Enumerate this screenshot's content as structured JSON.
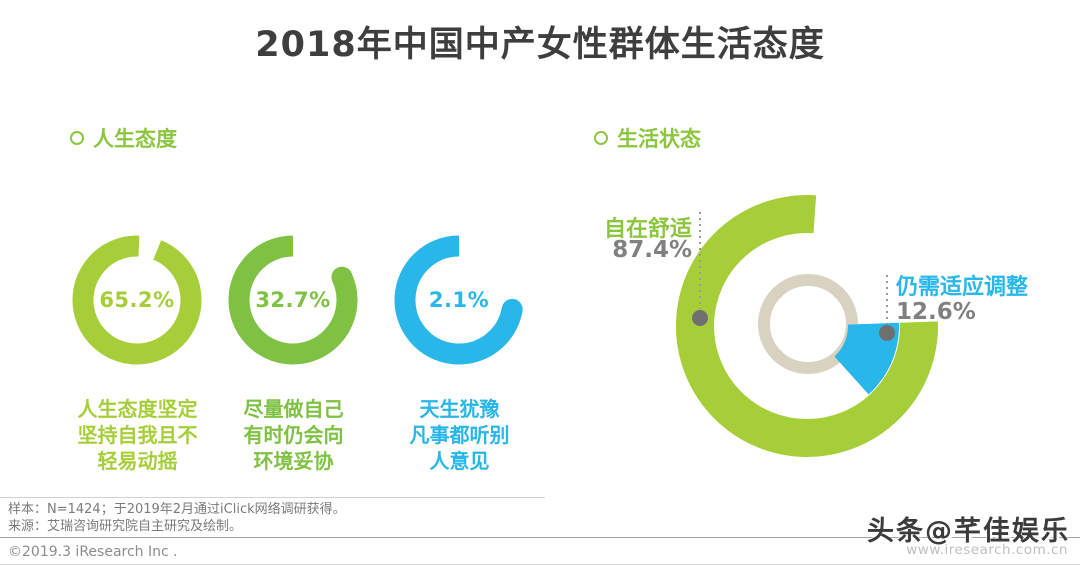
{
  "title": "2018年中国中产女性群体生活态度",
  "sections": {
    "left": {
      "header": "人生态度"
    },
    "right": {
      "header": "生活状态"
    }
  },
  "colors": {
    "title_dark": "#3e3e3e",
    "header_green": "#8cc63f",
    "value_gray": "#808080",
    "inner_ring_beige": "#d8d2c1",
    "dot_gray": "#6f6f6f",
    "dotted_line_gray": "#9a9a9a"
  },
  "chart_data": [
    {
      "type": "pie",
      "variant": "three-donuts",
      "title": "人生态度",
      "legend_position": "below-each-donut",
      "items": [
        {
          "label": "人生态度坚定坚持自我且不轻易动摇",
          "label_lines": [
            "人生态度坚定",
            "坚持自我且不",
            "轻易动摇"
          ],
          "value_pct": 65.2,
          "value_label": "65.2%",
          "color": "#a6ce39",
          "arc_gap_deg": [
            2,
            22
          ],
          "round_end_cap": false
        },
        {
          "label": "尽量做自己有时仍会向环境妥协",
          "label_lines": [
            "尽量做自己",
            "有时仍会向",
            "环境妥协"
          ],
          "value_pct": 32.7,
          "value_label": "32.7%",
          "color": "#7ec143",
          "arc_gap_deg": [
            0,
            65
          ],
          "round_end_cap": true
        },
        {
          "label": "天生犹豫凡事都听别人意见",
          "label_lines": [
            "天生犹豫",
            "凡事都听别",
            "人意见"
          ],
          "value_pct": 2.1,
          "value_label": "2.1%",
          "color": "#29b6e8",
          "arc_gap_deg": [
            0,
            100
          ],
          "round_end_cap": true
        }
      ]
    },
    {
      "type": "pie",
      "variant": "big-donut-with-callouts",
      "title": "生活状态",
      "items": [
        {
          "label": "自在舒适",
          "value_pct": 87.4,
          "value_label": "87.4%",
          "color": "#a6ce39"
        },
        {
          "label": "仍需适应调整",
          "value_pct": 12.6,
          "value_label": "12.6%",
          "color": "#29b6e8"
        }
      ],
      "green_arc_deg": [
        88,
        364
      ],
      "cyan_wedge_deg": [
        88,
        138
      ],
      "inner_ring_color": "#d8d2c1"
    }
  ],
  "footer": {
    "note1": "样本：N=1424；于2019年2月通过iClick网络调研获得。",
    "note2": "来源：艾瑞咨询研究院自主研究及绘制。",
    "copyright": "©2019.3 iResearch Inc .",
    "watermark": "头条@芊佳娱乐",
    "url": "www.iresearch.com.cn"
  }
}
